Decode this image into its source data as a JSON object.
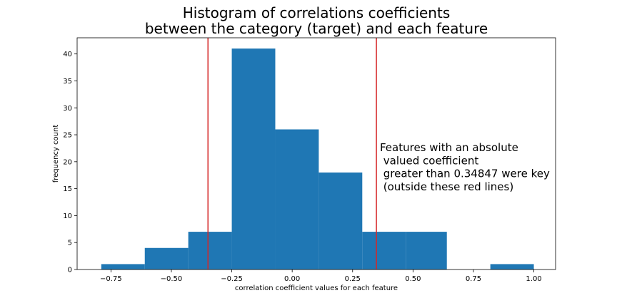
{
  "chart_data": {
    "type": "bar",
    "title_lines": [
      "Histogram of correlations coefficients",
      "between the category (target) and each feature"
    ],
    "xlabel": "correlation coefficient values for each feature",
    "ylabel": "frequency count",
    "xlim": [
      -0.89,
      1.09
    ],
    "ylim": [
      0,
      43
    ],
    "xticks": [
      -0.75,
      -0.5,
      -0.25,
      0.0,
      0.25,
      0.5,
      0.75,
      1.0
    ],
    "xtick_labels": [
      "−0.75",
      "−0.50",
      "−0.25",
      "0.00",
      "0.25",
      "0.50",
      "0.75",
      "1.00"
    ],
    "yticks": [
      0,
      5,
      10,
      15,
      20,
      25,
      30,
      35,
      40
    ],
    "ytick_labels": [
      "0",
      "5",
      "10",
      "15",
      "20",
      "25",
      "30",
      "35",
      "40"
    ],
    "bins": [
      {
        "x0": -0.79,
        "x1": -0.61,
        "count": 1
      },
      {
        "x0": -0.61,
        "x1": -0.43,
        "count": 4
      },
      {
        "x0": -0.43,
        "x1": -0.25,
        "count": 7
      },
      {
        "x0": -0.25,
        "x1": -0.07,
        "count": 41
      },
      {
        "x0": -0.07,
        "x1": 0.11,
        "count": 26
      },
      {
        "x0": 0.11,
        "x1": 0.29,
        "count": 18
      },
      {
        "x0": 0.29,
        "x1": 0.47,
        "count": 7
      },
      {
        "x0": 0.47,
        "x1": 0.64,
        "count": 7
      },
      {
        "x0": 0.64,
        "x1": 0.82,
        "count": 0
      },
      {
        "x0": 0.82,
        "x1": 1.0,
        "count": 1
      }
    ],
    "vlines": [
      -0.34847,
      0.34847
    ],
    "annotation_lines": [
      "Features with an absolute",
      " valued coefficient",
      " greater than 0.34847 were key",
      " (outside these red lines)"
    ],
    "bar_color": "#1f77b4",
    "vline_color": "#d62728"
  }
}
